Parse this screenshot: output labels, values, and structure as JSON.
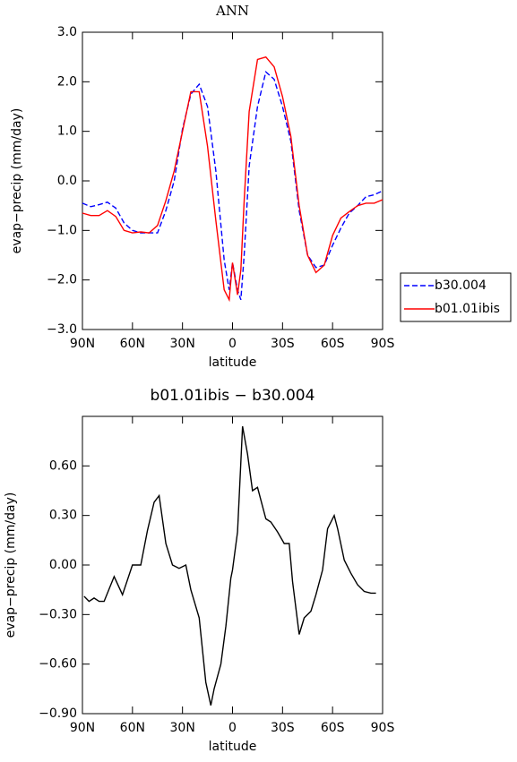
{
  "chart_data": [
    {
      "type": "line",
      "title": "ANN",
      "y_label": "evap−precip (mm/day)",
      "x_label": "latitude",
      "x": [
        90,
        85,
        80,
        75,
        70,
        65,
        60,
        55,
        50,
        45,
        40,
        35,
        30,
        25,
        20,
        15,
        10,
        5,
        2,
        0,
        -3,
        -5,
        -7,
        -10,
        -15,
        -20,
        -25,
        -30,
        -35,
        -40,
        -45,
        -50,
        -55,
        -60,
        -65,
        -70,
        -75,
        -80,
        -85,
        -90
      ],
      "series": [
        {
          "name": "b30.004",
          "color": "#0000ff",
          "dash": true,
          "values": [
            -0.45,
            -0.52,
            -0.48,
            -0.43,
            -0.55,
            -0.85,
            -1.0,
            -1.05,
            -1.05,
            -1.05,
            -0.6,
            0.0,
            1.05,
            1.75,
            1.95,
            1.5,
            0.2,
            -1.6,
            -2.2,
            -1.65,
            -2.2,
            -2.4,
            -1.5,
            0.3,
            1.5,
            2.2,
            2.05,
            1.5,
            0.8,
            -0.6,
            -1.5,
            -1.75,
            -1.7,
            -1.3,
            -0.95,
            -0.65,
            -0.5,
            -0.32,
            -0.28,
            -0.2
          ]
        },
        {
          "name": "b01.01ibis",
          "color": "#ff0000",
          "dash": false,
          "values": [
            -0.65,
            -0.7,
            -0.7,
            -0.6,
            -0.72,
            -1.0,
            -1.05,
            -1.03,
            -1.05,
            -0.9,
            -0.4,
            0.2,
            1.0,
            1.8,
            1.8,
            0.7,
            -0.8,
            -2.2,
            -2.4,
            -1.65,
            -2.3,
            -1.8,
            -0.4,
            1.4,
            2.45,
            2.5,
            2.3,
            1.7,
            0.9,
            -0.5,
            -1.5,
            -1.85,
            -1.7,
            -1.1,
            -0.75,
            -0.62,
            -0.5,
            -0.45,
            -0.45,
            -0.38
          ]
        }
      ],
      "xlim": [
        90,
        -90
      ],
      "xticks": [
        {
          "value": 90,
          "label": "90N"
        },
        {
          "value": 60,
          "label": "60N"
        },
        {
          "value": 30,
          "label": "30N"
        },
        0,
        {
          "value": -30,
          "label": "30S"
        },
        {
          "value": -60,
          "label": "60S"
        },
        {
          "value": -90,
          "label": "90S"
        }
      ],
      "ylim": [
        -3,
        3
      ],
      "yticks": [
        {
          "value": -3,
          "label": "−3.0"
        },
        {
          "value": -2,
          "label": "−2.0"
        },
        {
          "value": -1,
          "label": "−1.0"
        },
        {
          "value": 0,
          "label": "0.0"
        },
        {
          "value": 1,
          "label": "1.0"
        },
        {
          "value": 2,
          "label": "2.0"
        },
        {
          "value": 3,
          "label": "3.0"
        }
      ],
      "legend": "right"
    },
    {
      "type": "line",
      "title": "b01.01ibis − b30.004",
      "y_label": "evap−precip (mm/day)",
      "x_label": "latitude",
      "x": [
        89,
        86,
        83,
        80,
        77,
        71,
        66,
        60,
        55,
        51,
        47,
        44,
        40,
        36,
        32,
        28,
        25,
        20,
        16,
        13,
        11,
        7,
        4,
        1,
        0,
        -3,
        -6,
        -9,
        -12,
        -15,
        -20,
        -23,
        -27,
        -31,
        -34,
        -36,
        -40,
        -43,
        -47,
        -50,
        -54,
        -57,
        -61,
        -63,
        -67,
        -71,
        -75,
        -79,
        -83,
        -86
      ],
      "series": [
        {
          "name": "b01.01ibis − b30.004",
          "color": "#000000",
          "dash": false,
          "values": [
            -0.19,
            -0.22,
            -0.2,
            -0.22,
            -0.22,
            -0.07,
            -0.18,
            0.0,
            0.0,
            0.21,
            0.38,
            0.42,
            0.13,
            0.0,
            -0.02,
            0.0,
            -0.15,
            -0.32,
            -0.71,
            -0.85,
            -0.75,
            -0.6,
            -0.37,
            -0.08,
            -0.03,
            0.2,
            0.84,
            0.67,
            0.45,
            0.47,
            0.28,
            0.26,
            0.2,
            0.13,
            0.13,
            -0.1,
            -0.42,
            -0.32,
            -0.28,
            -0.18,
            -0.03,
            0.22,
            0.3,
            0.22,
            0.03,
            -0.05,
            -0.12,
            -0.16,
            -0.17,
            -0.17
          ]
        }
      ],
      "xlim": [
        90,
        -90
      ],
      "xticks": [
        {
          "value": 90,
          "label": "90N"
        },
        {
          "value": 60,
          "label": "60N"
        },
        {
          "value": 30,
          "label": "30N"
        },
        0,
        {
          "value": -30,
          "label": "30S"
        },
        {
          "value": -60,
          "label": "60S"
        },
        {
          "value": -90,
          "label": "90S"
        }
      ],
      "ylim": [
        -0.9,
        0.9
      ],
      "yticks": [
        {
          "value": -0.9,
          "label": "−0.90"
        },
        {
          "value": -0.6,
          "label": "−0.60"
        },
        {
          "value": -0.3,
          "label": "−0.30"
        },
        {
          "value": 0,
          "label": "0.00"
        },
        {
          "value": 0.3,
          "label": "0.30"
        },
        {
          "value": 0.6,
          "label": "0.60"
        }
      ]
    }
  ]
}
